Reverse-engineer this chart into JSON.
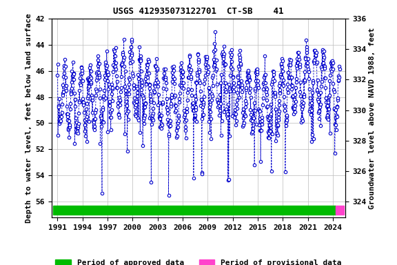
{
  "title": "USGS 412935073122701  CT-SB    41",
  "ylabel_left": "Depth to water level, feet below land surface",
  "ylabel_right": "Groundwater level above NAVD 1988, feet",
  "ylim_left": [
    42,
    57.2
  ],
  "ylim_right_vals": [
    336,
    334,
    332,
    330,
    328,
    326,
    324
  ],
  "yticks_left": [
    42,
    44,
    46,
    48,
    50,
    52,
    54,
    56
  ],
  "xticks": [
    1991,
    1994,
    1997,
    2000,
    2003,
    2006,
    2009,
    2012,
    2015,
    2018,
    2021,
    2024
  ],
  "xlim": [
    1990.3,
    2025.5
  ],
  "data_color": "#0000cc",
  "approved_color": "#00bb00",
  "provisional_color": "#ff44cc",
  "background_color": "#ffffff",
  "grid_color": "#bbbbbb",
  "title_fontsize": 9,
  "axis_label_fontsize": 8,
  "tick_fontsize": 8,
  "legend_fontsize": 8,
  "approved_start": 1990.5,
  "approved_end": 2024.3,
  "provisional_start": 2024.3,
  "provisional_end": 2025.3,
  "bar_y_bottom": 56.3,
  "bar_height": 0.7
}
